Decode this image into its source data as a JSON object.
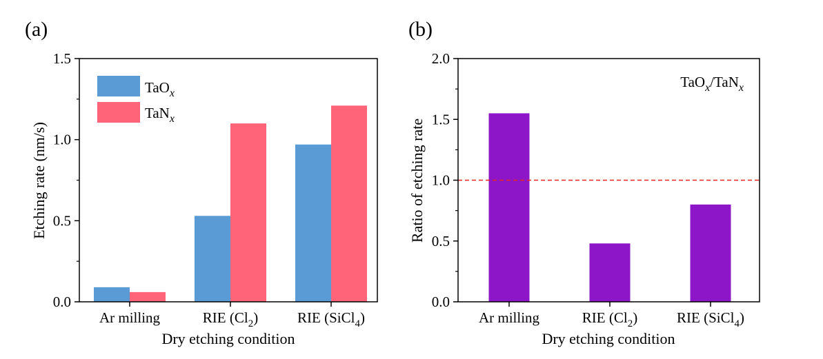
{
  "chart_data": [
    {
      "panel_label": "(a)",
      "type": "bar",
      "categories": [
        "Ar milling",
        "RIE (Cl2)",
        "RIE (SiCl4)"
      ],
      "category_display": [
        {
          "main": "Ar milling",
          "sub": "",
          "close": ""
        },
        {
          "main": "RIE (Cl",
          "sub": "2",
          "close": ")"
        },
        {
          "main": "RIE (SiCl",
          "sub": "4",
          "close": ")"
        }
      ],
      "series": [
        {
          "name": "TaOx",
          "name_main": "TaO",
          "name_sub": "x",
          "color": "#5b9bd5",
          "values": [
            0.09,
            0.53,
            0.97
          ]
        },
        {
          "name": "TaNx",
          "name_main": "TaN",
          "name_sub": "x",
          "color": "#ff6478",
          "values": [
            0.06,
            1.1,
            1.21
          ]
        }
      ],
      "xlabel": "Dry etching condition",
      "ylabel": "Etching rate (nm/s)",
      "ylim": [
        0,
        1.5
      ],
      "yticks": [
        "0.0",
        "0.5",
        "1.0",
        "1.5"
      ],
      "legend_position": "top-left",
      "grid": false
    },
    {
      "panel_label": "(b)",
      "type": "bar",
      "categories": [
        "Ar milling",
        "RIE (Cl2)",
        "RIE (SiCl4)"
      ],
      "category_display": [
        {
          "main": "Ar milling",
          "sub": "",
          "close": ""
        },
        {
          "main": "RIE (Cl",
          "sub": "2",
          "close": ")"
        },
        {
          "main": "RIE (SiCl",
          "sub": "4",
          "close": ")"
        }
      ],
      "series": [
        {
          "color": "#8e16c9",
          "values": [
            1.55,
            0.48,
            0.8
          ]
        }
      ],
      "reference_line": {
        "y": 1.0,
        "color": "#e8261f",
        "style": "dashed"
      },
      "annotation": {
        "a_main": "TaO",
        "a_sub": "x",
        "sep": "/TaN",
        "b_sub": "x"
      },
      "xlabel": "Dry etching condition",
      "ylabel": "Ratio of etching rate",
      "ylim": [
        0,
        2.0
      ],
      "yticks": [
        "0.0",
        "0.5",
        "1.0",
        "1.5",
        "2.0"
      ],
      "grid": false
    }
  ]
}
